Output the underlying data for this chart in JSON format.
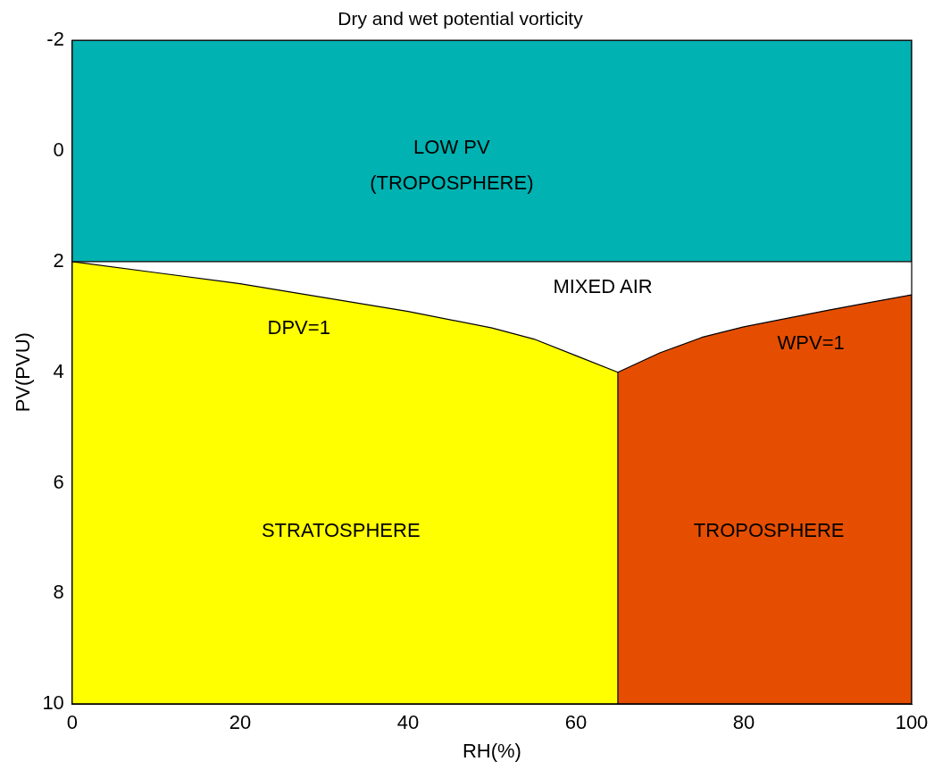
{
  "chart_data": {
    "type": "area",
    "title": "Dry and wet potential vorticity",
    "xlabel": "RH(%)",
    "ylabel": "PV(PVU)",
    "xlim": [
      0,
      100
    ],
    "xticks": [
      0,
      20,
      40,
      60,
      80,
      100
    ],
    "ylim": [
      10,
      -2
    ],
    "yticks": [
      -2,
      0,
      2,
      4,
      6,
      8,
      10
    ],
    "legend": false,
    "series": [
      {
        "color": "#00b2b2",
        "x": [
          0,
          100,
          100,
          0
        ],
        "values": [
          2,
          2,
          -2,
          -2
        ]
      },
      {
        "color": "#ffff00",
        "x": [
          0,
          10,
          20,
          30,
          40,
          50,
          55,
          60,
          65,
          65,
          0
        ],
        "values": [
          2,
          2.2,
          2.4,
          2.65,
          2.9,
          3.2,
          3.4,
          3.7,
          4,
          10,
          10
        ]
      },
      {
        "color": "#e54e00",
        "x": [
          65,
          70,
          75,
          80,
          85,
          90,
          95,
          100,
          100,
          65
        ],
        "values": [
          4,
          3.65,
          3.37,
          3.18,
          3.03,
          2.88,
          2.74,
          2.6,
          10,
          10
        ]
      }
    ],
    "annotations": [
      "LOW PV",
      "(TROPOSPHERE)",
      "MIXED AIR",
      "DPV=1",
      "WPV=1",
      "STRATOSPHERE",
      "TROPOSPHERE"
    ]
  }
}
